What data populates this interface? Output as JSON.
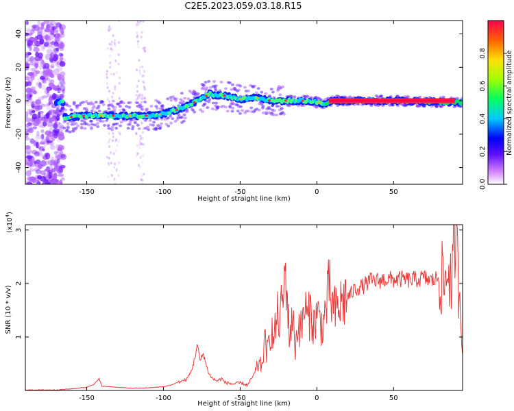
{
  "title": "C2E5.2023.059.03.18.R15",
  "colors": {
    "snr_line": "#e83a3a",
    "axis": "#000000"
  },
  "chart_data": [
    {
      "type": "heatmap",
      "xlabel": "Height of straight line (km)",
      "ylabel": "Frequency (Hz)",
      "xlim": [
        -190,
        95
      ],
      "ylim": [
        -50,
        48
      ],
      "x_ticks": [
        -150,
        -100,
        -50,
        0,
        50
      ],
      "y_ticks": [
        -40,
        -20,
        0,
        20,
        40
      ],
      "colorbar": {
        "label": "Normalized spectral amplitude",
        "range": [
          0,
          1
        ],
        "ticks": [
          "0.0",
          "0.2",
          "0.4",
          "0.6",
          "0.8"
        ],
        "colormap": [
          "#ffffff",
          "#c060ff",
          "#6010ff",
          "#0000ff",
          "#00c8ff",
          "#00ff60",
          "#a0ff00",
          "#ffe000",
          "#ff6000",
          "#ff0050"
        ]
      },
      "ridge": [
        {
          "x": -165,
          "y": -10
        },
        {
          "x": -150,
          "y": -9
        },
        {
          "x": -130,
          "y": -9
        },
        {
          "x": -110,
          "y": -9
        },
        {
          "x": -100,
          "y": -8
        },
        {
          "x": -90,
          "y": -5
        },
        {
          "x": -80,
          "y": -1
        },
        {
          "x": -70,
          "y": 4
        },
        {
          "x": -60,
          "y": 3
        },
        {
          "x": -50,
          "y": 1
        },
        {
          "x": -40,
          "y": 2
        },
        {
          "x": -30,
          "y": 0
        },
        {
          "x": -20,
          "y": 0
        },
        {
          "x": -5,
          "y": 0
        },
        {
          "x": 5,
          "y": -2
        },
        {
          "x": 10,
          "y": 0
        },
        {
          "x": 50,
          "y": 0
        },
        {
          "x": 95,
          "y": -1
        }
      ]
    },
    {
      "type": "line",
      "xlabel": "Height of straight line (km)",
      "ylabel": "SNR (10 * v/v)",
      "yscale_label": "(x10",
      "yscale_exp": "4",
      "yscale_close": ")",
      "xlim": [
        -190,
        95
      ],
      "ylim": [
        0,
        3.1
      ],
      "x_ticks": [
        -150,
        -100,
        -50,
        0,
        50
      ],
      "y_ticks": [
        1,
        2,
        3
      ],
      "series": [
        {
          "points": [
            [
              -190,
              0.01
            ],
            [
              -170,
              0.01
            ],
            [
              -160,
              0.03
            ],
            [
              -150,
              0.06
            ],
            [
              -145,
              0.12
            ],
            [
              -142,
              0.22
            ],
            [
              -140,
              0.08
            ],
            [
              -130,
              0.06
            ],
            [
              -120,
              0.04
            ],
            [
              -110,
              0.05
            ],
            [
              -100,
              0.07
            ],
            [
              -95,
              0.1
            ],
            [
              -90,
              0.16
            ],
            [
              -85,
              0.2
            ],
            [
              -82,
              0.35
            ],
            [
              -80,
              0.55
            ],
            [
              -78,
              0.85
            ],
            [
              -76,
              0.55
            ],
            [
              -74,
              0.7
            ],
            [
              -72,
              0.45
            ],
            [
              -70,
              0.3
            ],
            [
              -68,
              0.22
            ],
            [
              -65,
              0.18
            ],
            [
              -62,
              0.22
            ],
            [
              -60,
              0.15
            ],
            [
              -55,
              0.12
            ],
            [
              -50,
              0.14
            ],
            [
              -45,
              0.1
            ],
            [
              -40,
              0.35
            ],
            [
              -38,
              0.5
            ],
            [
              -36,
              0.45
            ],
            [
              -34,
              0.9
            ],
            [
              -32,
              0.7
            ],
            [
              -30,
              1.2
            ],
            [
              -28,
              0.9
            ],
            [
              -26,
              1.4
            ],
            [
              -24,
              1.3
            ],
            [
              -22,
              1.8
            ],
            [
              -20,
              2.2
            ],
            [
              -18,
              1.0
            ],
            [
              -16,
              1.4
            ],
            [
              -14,
              0.8
            ],
            [
              -12,
              1.3
            ],
            [
              -10,
              1.1
            ],
            [
              -8,
              1.6
            ],
            [
              -6,
              1.3
            ],
            [
              -4,
              1.5
            ],
            [
              -2,
              1.2
            ],
            [
              0,
              1.45
            ],
            [
              2,
              1.3
            ],
            [
              4,
              1.2
            ],
            [
              6,
              1.55
            ],
            [
              8,
              1.9
            ],
            [
              10,
              1.6
            ],
            [
              12,
              1.45
            ],
            [
              15,
              1.6
            ],
            [
              18,
              1.7
            ],
            [
              20,
              1.75
            ],
            [
              22,
              1.8
            ],
            [
              25,
              1.9
            ],
            [
              30,
              1.95
            ],
            [
              35,
              2.05
            ],
            [
              40,
              2.05
            ],
            [
              45,
              2.08
            ],
            [
              50,
              2.07
            ],
            [
              55,
              2.08
            ],
            [
              60,
              2.06
            ],
            [
              65,
              2.08
            ],
            [
              70,
              2.1
            ],
            [
              75,
              2.05
            ],
            [
              80,
              2.12
            ],
            [
              84,
              2.0
            ],
            [
              86,
              2.4
            ],
            [
              88,
              1.8
            ],
            [
              90,
              3.05
            ],
            [
              92,
              2.2
            ],
            [
              94,
              1.5
            ],
            [
              95,
              0.8
            ]
          ]
        }
      ]
    }
  ]
}
